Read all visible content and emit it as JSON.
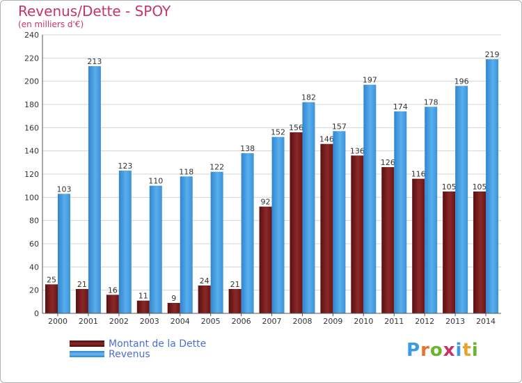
{
  "title": "Revenus/Dette - SPOY",
  "subtitle": "(en milliers d'€)",
  "colors": {
    "title": "#c8346a",
    "dette": "#7a1b1b",
    "revenus": "#3d9be0",
    "legend_text": "#4a6fd1"
  },
  "legend": {
    "dette_label": "Montant de la Dette",
    "revenus_label": "Revenus"
  },
  "logo": {
    "text": "Proxiti"
  },
  "chart_data": {
    "type": "bar",
    "title": "Revenus/Dette - SPOY",
    "subtitle": "(en milliers d'€)",
    "categories": [
      "2000",
      "2001",
      "2002",
      "2003",
      "2004",
      "2005",
      "2006",
      "2007",
      "2008",
      "2009",
      "2010",
      "2011",
      "2012",
      "2013",
      "2014"
    ],
    "series": [
      {
        "name": "Montant de la Dette",
        "values": [
          25,
          21,
          16,
          11,
          9,
          24,
          21,
          92,
          156,
          146,
          136,
          126,
          116,
          105,
          105
        ]
      },
      {
        "name": "Revenus",
        "values": [
          103,
          213,
          123,
          110,
          118,
          122,
          138,
          152,
          182,
          157,
          197,
          174,
          178,
          196,
          219
        ]
      }
    ],
    "ylim": [
      0,
      240
    ],
    "yticks": [
      0,
      20,
      40,
      60,
      80,
      100,
      120,
      140,
      160,
      180,
      200,
      220,
      240
    ],
    "grid": true,
    "legend_position": "bottom-left"
  }
}
